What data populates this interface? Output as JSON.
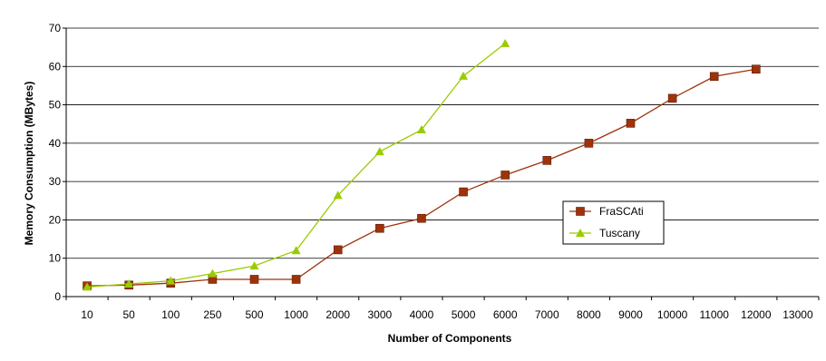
{
  "chart_data": {
    "type": "line",
    "xlabel": "Number of Components",
    "ylabel": "Memory Consumption (MBytes)",
    "categories": [
      "10",
      "50",
      "100",
      "250",
      "500",
      "1000",
      "2000",
      "3000",
      "4000",
      "5000",
      "6000",
      "7000",
      "8000",
      "9000",
      "10000",
      "11000",
      "12000",
      "13000"
    ],
    "ylim": [
      0,
      70
    ],
    "yticks": [
      0,
      10,
      20,
      30,
      40,
      50,
      60,
      70
    ],
    "grid": true,
    "legend_position": "right",
    "series": [
      {
        "name": "FraSCAti",
        "color": "#a0320a",
        "marker": "square",
        "values": [
          2.8,
          3.0,
          3.5,
          4.5,
          4.5,
          4.5,
          12.2,
          17.8,
          20.4,
          27.3,
          31.7,
          35.5,
          40.0,
          45.2,
          51.7,
          57.4,
          59.3,
          null
        ]
      },
      {
        "name": "Tuscany",
        "color": "#99cc00",
        "marker": "triangle",
        "values": [
          2.5,
          3.3,
          4.1,
          6.0,
          8.0,
          12.0,
          26.4,
          37.8,
          43.5,
          57.5,
          66.0,
          null,
          null,
          null,
          null,
          null,
          null,
          null
        ]
      }
    ]
  }
}
